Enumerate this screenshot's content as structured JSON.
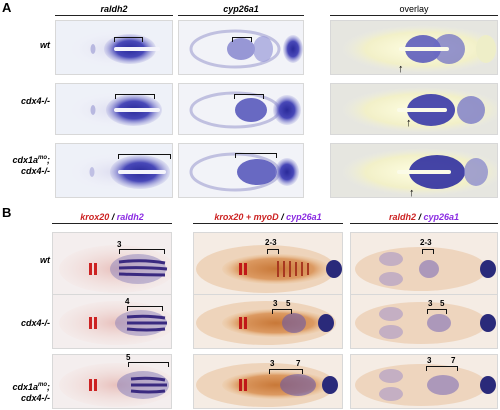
{
  "panelA": {
    "letter": "A",
    "columns": [
      "raldh2",
      "cyp26a1",
      "overlay"
    ],
    "rows": [
      "wt",
      "cdx4-/-",
      "cdx1a",
      "mo",
      ";",
      "cdx4-/-"
    ]
  },
  "panelB": {
    "letter": "B",
    "col1": {
      "a": "krox20",
      "sep": " / ",
      "b": "raldh2"
    },
    "col2": {
      "a": "krox20 + myoD",
      "sep": " / ",
      "b": "cyp26a1"
    },
    "col3": {
      "a": "raldh2",
      "sep": " / ",
      "b": "cyp26a1"
    },
    "rows": [
      "wt",
      "cdx4-/-",
      "cdx1a",
      "mo",
      ";",
      "cdx4-/-"
    ],
    "labels": {
      "r1c1": "3",
      "r1c2": "2-3",
      "r1c3": "2-3",
      "r2c1": "4",
      "r2c2a": "3",
      "r2c2b": "5",
      "r2c3a": "3",
      "r2c3b": "5",
      "r3c1": "5",
      "r3c2a": "3",
      "r3c2b": "7",
      "r3c3a": "3",
      "r3c3b": "7"
    }
  },
  "colors": {
    "stain_blue": "#4a4ab8",
    "stain_red": "#cc2222",
    "embryo_orange": "#d9925a"
  },
  "arrow_glyph": "↑"
}
